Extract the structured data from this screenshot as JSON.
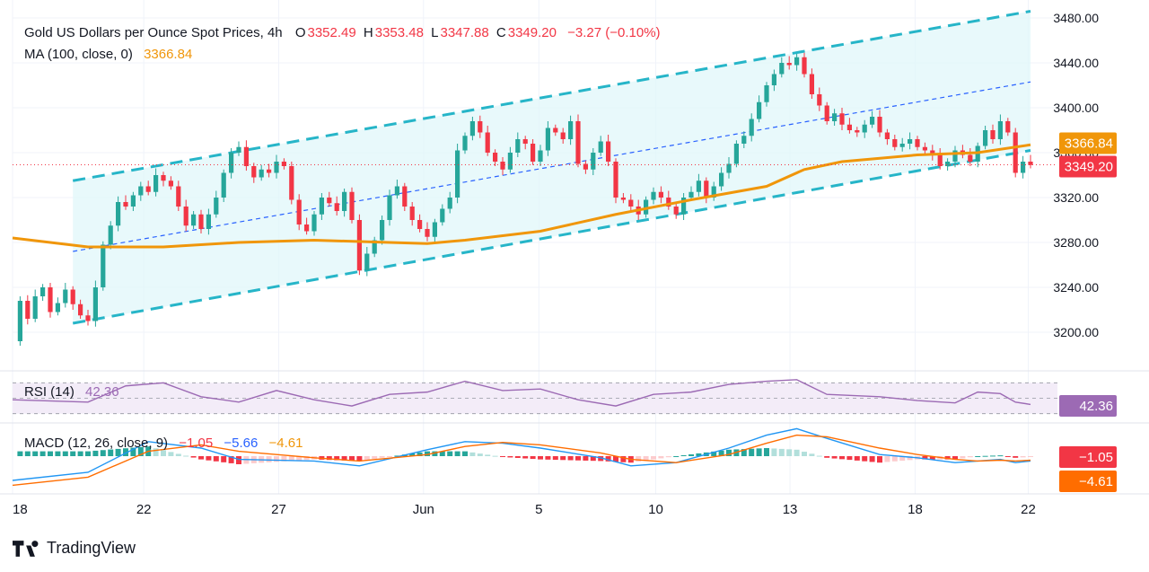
{
  "header": {
    "symbol": "Gold US Dollars per Ounce Spot Prices, 4h",
    "open_label": "O",
    "open": "3352.49",
    "high_label": "H",
    "high": "3353.48",
    "low_label": "L",
    "low": "3347.88",
    "close_label": "C",
    "close": "3349.20",
    "change": "−3.27 (−0.10%)",
    "ma_label": "MA (100, close, 0)",
    "ma_value": "3366.84",
    "rsi_label": "RSI (14)",
    "rsi_value": "42.36",
    "macd_label": "MACD (12, 26, close, 9)",
    "macd_hist": "−1.05",
    "macd_line": "−5.66",
    "macd_signal": "−4.61"
  },
  "price_badges": {
    "ma": "3366.84",
    "last": "3349.20",
    "rsi": "42.36",
    "macd": "−1.05",
    "signal": "−4.61"
  },
  "brand": {
    "name": "TradingView"
  },
  "colors": {
    "up": "#26a69a",
    "down": "#f23645",
    "ma": "#f0960a",
    "channel": "#26b5c8",
    "mid": "#2962ff",
    "rsi": "#9c6ab4",
    "macd": "#2196f3",
    "signal": "#ff6d00"
  },
  "chart_data": {
    "type": "candlestick",
    "ylim": [
      3185,
      3488
    ],
    "y_ticks": [
      "3480.00",
      "3440.00",
      "3400.00",
      "3360.00",
      "3320.00",
      "3280.00",
      "3240.00",
      "3200.00"
    ],
    "x_ticks": [
      "18",
      "22",
      "27",
      "Jun",
      "5",
      "10",
      "13",
      "18",
      "22"
    ],
    "last_price": 3349.2,
    "ma_value": 3366.84,
    "price_path": [
      [
        0,
        3192
      ],
      [
        1,
        3228
      ],
      [
        2,
        3212
      ],
      [
        3,
        3232
      ],
      [
        4,
        3240
      ],
      [
        5,
        3218
      ],
      [
        6,
        3226
      ],
      [
        7,
        3238
      ],
      [
        8,
        3225
      ],
      [
        9,
        3215
      ],
      [
        10,
        3210
      ],
      [
        11,
        3240
      ],
      [
        12,
        3278
      ],
      [
        13,
        3295
      ],
      [
        14,
        3316
      ],
      [
        15,
        3312
      ],
      [
        16,
        3322
      ],
      [
        17,
        3330
      ],
      [
        18,
        3325
      ],
      [
        19,
        3340
      ],
      [
        20,
        3335
      ],
      [
        21,
        3330
      ],
      [
        22,
        3312
      ],
      [
        23,
        3295
      ],
      [
        24,
        3305
      ],
      [
        25,
        3292
      ],
      [
        26,
        3305
      ],
      [
        27,
        3320
      ],
      [
        28,
        3342
      ],
      [
        29,
        3360
      ],
      [
        30,
        3365
      ],
      [
        31,
        3348
      ],
      [
        32,
        3338
      ],
      [
        33,
        3345
      ],
      [
        34,
        3342
      ],
      [
        35,
        3352
      ],
      [
        36,
        3348
      ],
      [
        37,
        3318
      ],
      [
        38,
        3296
      ],
      [
        39,
        3290
      ],
      [
        40,
        3305
      ],
      [
        41,
        3320
      ],
      [
        42,
        3315
      ],
      [
        43,
        3308
      ],
      [
        44,
        3325
      ],
      [
        45,
        3300
      ],
      [
        46,
        3255
      ],
      [
        47,
        3270
      ],
      [
        48,
        3282
      ],
      [
        49,
        3300
      ],
      [
        50,
        3322
      ],
      [
        51,
        3330
      ],
      [
        52,
        3312
      ],
      [
        53,
        3300
      ],
      [
        54,
        3292
      ],
      [
        55,
        3285
      ],
      [
        56,
        3298
      ],
      [
        57,
        3310
      ],
      [
        58,
        3320
      ],
      [
        59,
        3362
      ],
      [
        60,
        3375
      ],
      [
        61,
        3388
      ],
      [
        62,
        3378
      ],
      [
        63,
        3360
      ],
      [
        64,
        3352
      ],
      [
        65,
        3345
      ],
      [
        66,
        3360
      ],
      [
        67,
        3372
      ],
      [
        68,
        3368
      ],
      [
        69,
        3352
      ],
      [
        70,
        3362
      ],
      [
        71,
        3382
      ],
      [
        72,
        3378
      ],
      [
        73,
        3372
      ],
      [
        74,
        3388
      ],
      [
        75,
        3350
      ],
      [
        76,
        3345
      ],
      [
        77,
        3360
      ],
      [
        78,
        3370
      ],
      [
        79,
        3352
      ],
      [
        80,
        3320
      ],
      [
        81,
        3318
      ],
      [
        82,
        3312
      ],
      [
        83,
        3305
      ],
      [
        84,
        3318
      ],
      [
        85,
        3325
      ],
      [
        86,
        3320
      ],
      [
        87,
        3312
      ],
      [
        88,
        3305
      ],
      [
        89,
        3320
      ],
      [
        90,
        3325
      ],
      [
        91,
        3335
      ],
      [
        92,
        3320
      ],
      [
        93,
        3330
      ],
      [
        94,
        3342
      ],
      [
        95,
        3350
      ],
      [
        96,
        3368
      ],
      [
        97,
        3375
      ],
      [
        98,
        3390
      ],
      [
        99,
        3405
      ],
      [
        100,
        3420
      ],
      [
        101,
        3430
      ],
      [
        102,
        3440
      ],
      [
        103,
        3438
      ],
      [
        104,
        3445
      ],
      [
        105,
        3430
      ],
      [
        106,
        3412
      ],
      [
        107,
        3402
      ],
      [
        108,
        3388
      ],
      [
        109,
        3395
      ],
      [
        110,
        3385
      ],
      [
        111,
        3380
      ],
      [
        112,
        3378
      ],
      [
        113,
        3385
      ],
      [
        114,
        3392
      ],
      [
        115,
        3378
      ],
      [
        116,
        3372
      ],
      [
        117,
        3365
      ],
      [
        118,
        3368
      ],
      [
        119,
        3372
      ],
      [
        120,
        3365
      ],
      [
        121,
        3362
      ],
      [
        122,
        3358
      ],
      [
        123,
        3348
      ],
      [
        124,
        3352
      ],
      [
        125,
        3362
      ],
      [
        126,
        3358
      ],
      [
        127,
        3352
      ],
      [
        128,
        3366
      ],
      [
        129,
        3380
      ],
      [
        130,
        3372
      ],
      [
        131,
        3388
      ],
      [
        132,
        3378
      ],
      [
        133,
        3342
      ],
      [
        134,
        3352
      ],
      [
        135,
        3349
      ]
    ],
    "ma_path": [
      [
        0,
        3284
      ],
      [
        10,
        3276
      ],
      [
        20,
        3276
      ],
      [
        30,
        3280
      ],
      [
        40,
        3282
      ],
      [
        50,
        3280
      ],
      [
        55,
        3279
      ],
      [
        60,
        3282
      ],
      [
        70,
        3290
      ],
      [
        80,
        3305
      ],
      [
        90,
        3318
      ],
      [
        100,
        3330
      ],
      [
        105,
        3345
      ],
      [
        110,
        3352
      ],
      [
        120,
        3358
      ],
      [
        128,
        3360
      ],
      [
        135,
        3367
      ]
    ],
    "channel": {
      "lower": [
        [
          8,
          3208
        ],
        [
          135,
          3362
        ]
      ],
      "upper": [
        [
          8,
          3335
        ],
        [
          135,
          3486
        ]
      ],
      "mid": [
        [
          8,
          3272
        ],
        [
          135,
          3423
        ]
      ]
    },
    "rsi_ylim": [
      0,
      100
    ],
    "rsi_path": [
      [
        0,
        48
      ],
      [
        10,
        45
      ],
      [
        15,
        66
      ],
      [
        20,
        70
      ],
      [
        25,
        52
      ],
      [
        30,
        45
      ],
      [
        35,
        60
      ],
      [
        40,
        48
      ],
      [
        45,
        40
      ],
      [
        50,
        55
      ],
      [
        55,
        58
      ],
      [
        60,
        72
      ],
      [
        65,
        60
      ],
      [
        70,
        62
      ],
      [
        75,
        48
      ],
      [
        80,
        40
      ],
      [
        85,
        55
      ],
      [
        90,
        58
      ],
      [
        95,
        68
      ],
      [
        100,
        72
      ],
      [
        104,
        74
      ],
      [
        108,
        55
      ],
      [
        115,
        52
      ],
      [
        120,
        47
      ],
      [
        125,
        44
      ],
      [
        128,
        58
      ],
      [
        131,
        56
      ],
      [
        133,
        45
      ],
      [
        135,
        42
      ]
    ],
    "macd_path": [
      [
        0,
        -30
      ],
      [
        10,
        -20
      ],
      [
        18,
        18
      ],
      [
        25,
        10
      ],
      [
        30,
        -4
      ],
      [
        40,
        -6
      ],
      [
        46,
        -12
      ],
      [
        55,
        8
      ],
      [
        60,
        18
      ],
      [
        65,
        16
      ],
      [
        70,
        10
      ],
      [
        78,
        -2
      ],
      [
        82,
        -12
      ],
      [
        88,
        -8
      ],
      [
        95,
        10
      ],
      [
        100,
        26
      ],
      [
        104,
        34
      ],
      [
        108,
        22
      ],
      [
        115,
        2
      ],
      [
        120,
        -2
      ],
      [
        125,
        -8
      ],
      [
        128,
        -6
      ],
      [
        131,
        -4
      ],
      [
        133,
        -8
      ],
      [
        135,
        -6
      ]
    ],
    "signal_path": [
      [
        0,
        -36
      ],
      [
        10,
        -26
      ],
      [
        18,
        6
      ],
      [
        25,
        14
      ],
      [
        30,
        6
      ],
      [
        40,
        -2
      ],
      [
        46,
        -6
      ],
      [
        55,
        2
      ],
      [
        60,
        12
      ],
      [
        65,
        17
      ],
      [
        70,
        14
      ],
      [
        78,
        4
      ],
      [
        82,
        -4
      ],
      [
        88,
        -8
      ],
      [
        95,
        2
      ],
      [
        100,
        16
      ],
      [
        104,
        26
      ],
      [
        108,
        24
      ],
      [
        115,
        10
      ],
      [
        120,
        2
      ],
      [
        125,
        -4
      ],
      [
        128,
        -6
      ],
      [
        131,
        -5
      ],
      [
        133,
        -6
      ],
      [
        135,
        -5
      ]
    ]
  }
}
